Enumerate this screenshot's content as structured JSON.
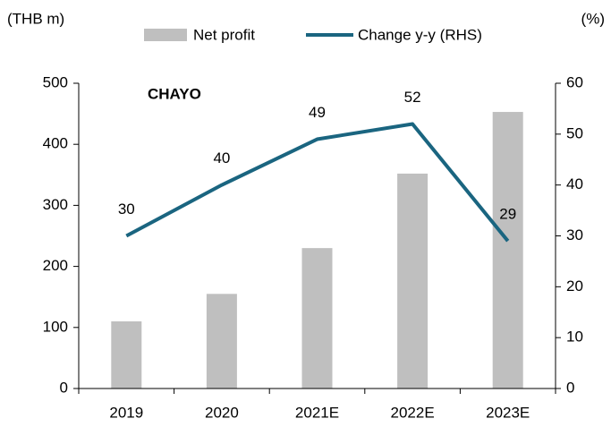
{
  "chart_data": {
    "type": "bar_line",
    "label": "CHAYO",
    "y_label": "(THB m)",
    "y2_label": "(%)",
    "categories": [
      "2019",
      "2020",
      "2021E",
      "2022E",
      "2023E"
    ],
    "series": [
      {
        "name": "Net profit",
        "type": "bar",
        "color": "#bfbfbf",
        "values": [
          110,
          155,
          230,
          352,
          453
        ]
      },
      {
        "name": "Change y-y (RHS)",
        "type": "line",
        "axis": "y2",
        "color": "#1a6580",
        "values": [
          30,
          40,
          49,
          52,
          29
        ],
        "show_labels": true
      }
    ],
    "ylim": [
      0,
      500
    ],
    "yticks": [
      0,
      100,
      200,
      300,
      400,
      500
    ],
    "y2lim": [
      0,
      60
    ],
    "y2ticks": [
      0,
      10,
      20,
      30,
      40,
      50,
      60
    ],
    "legend": "top",
    "grid": false
  }
}
